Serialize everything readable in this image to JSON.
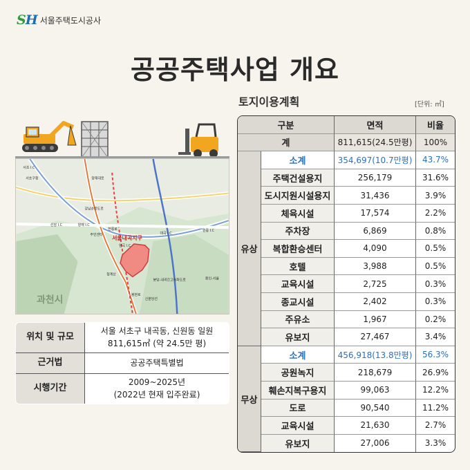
{
  "brand": {
    "mark": "SH",
    "name": "서울주택도시공사"
  },
  "title": "공공주택사업 개요",
  "land_use": {
    "title": "토지이용계획",
    "unit": "[단위: ㎡]",
    "headers": {
      "category": "구분",
      "area": "면적",
      "ratio": "비율"
    },
    "total": {
      "label": "계",
      "area": "811,615(24.5만평)",
      "ratio": "100%"
    },
    "groups": [
      {
        "name": "유상",
        "subtotal": {
          "label": "소계",
          "area": "354,697(10.7만평)",
          "ratio": "43.7%"
        },
        "rows": [
          {
            "label": "주택건설용지",
            "area": "256,179",
            "ratio": "31.6%"
          },
          {
            "label": "도시지원시설용지",
            "area": "31,436",
            "ratio": "3.9%"
          },
          {
            "label": "체육시설",
            "area": "17,574",
            "ratio": "2.2%"
          },
          {
            "label": "주차장",
            "area": "6,869",
            "ratio": "0.8%"
          },
          {
            "label": "복합환승센터",
            "area": "4,090",
            "ratio": "0.5%"
          },
          {
            "label": "호텔",
            "area": "3,988",
            "ratio": "0.5%"
          },
          {
            "label": "교육시설",
            "area": "2,725",
            "ratio": "0.3%"
          },
          {
            "label": "종교시설",
            "area": "2,402",
            "ratio": "0.3%"
          },
          {
            "label": "주유소",
            "area": "1,967",
            "ratio": "0.2%"
          },
          {
            "label": "유보지",
            "area": "27,467",
            "ratio": "3.4%"
          }
        ]
      },
      {
        "name": "무상",
        "subtotal": {
          "label": "소계",
          "area": "456,918(13.8만평)",
          "ratio": "56.3%"
        },
        "rows": [
          {
            "label": "공원녹지",
            "area": "218,679",
            "ratio": "26.9%"
          },
          {
            "label": "훼손지복구용지",
            "area": "99,063",
            "ratio": "12.2%"
          },
          {
            "label": "도로",
            "area": "90,540",
            "ratio": "11.2%"
          },
          {
            "label": "교육시설",
            "area": "21,630",
            "ratio": "2.7%"
          },
          {
            "label": "유보지",
            "area": "27,006",
            "ratio": "3.3%"
          }
        ]
      }
    ]
  },
  "overview": [
    {
      "label": "위치 및 규모",
      "lines": [
        "서울 서초구 내곡동, 신원동 일원",
        "811,615㎡ (약 24.5만 평)"
      ]
    },
    {
      "label": "근거법",
      "lines": [
        "공공주택특별법"
      ]
    },
    {
      "label": "시행기간",
      "lines": [
        "2009~2025년",
        "(2022년 현재 입주완료)"
      ]
    }
  ],
  "map": {
    "site_label": "서울내곡지구",
    "district_label": "과천시",
    "labels": [
      "서초 I.C",
      "서초구청",
      "양재 I.C",
      "선암 I.C",
      "헌릉로",
      "대곡 I.C",
      "청계산",
      "주민센터",
      "강남순환도로",
      "분당-내곡간고속화도로",
      "신분당선",
      "양재대로",
      "염곡 I.C",
      "헌릉 I.C",
      "용인-서울",
      "봉현로"
    ]
  },
  "colors": {
    "accent": "#2a6fc0",
    "site": "#f08b84",
    "header_bg": "#dcd9d3",
    "page_bg": "#f7f4ed"
  }
}
